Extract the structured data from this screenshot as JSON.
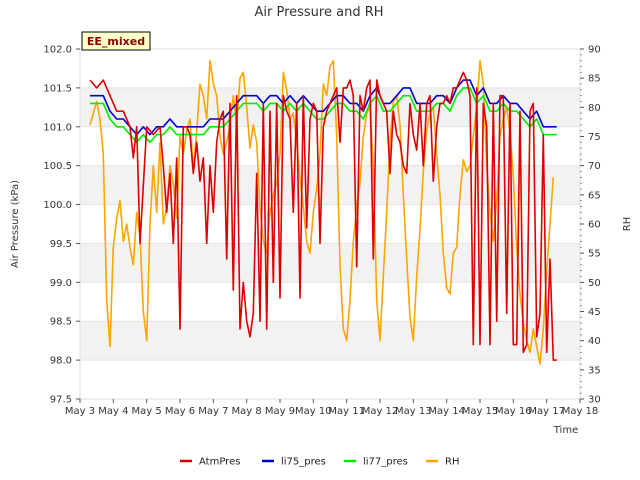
{
  "chart_data": {
    "type": "line",
    "title": "Air Pressure and RH",
    "badge": "EE_mixed",
    "xlabel": "Time",
    "ylabel": "Air Pressure (kPa)",
    "y2label": "RH",
    "xlim": [
      3,
      18
    ],
    "ylim": [
      97.5,
      102.0
    ],
    "y2lim": [
      30,
      90
    ],
    "x_ticks": [
      3,
      4,
      5,
      6,
      7,
      8,
      9,
      10,
      11,
      12,
      13,
      14,
      15,
      16,
      17,
      18
    ],
    "x_tick_labels": [
      "May 3",
      "May 4",
      "May 5",
      "May 6",
      "May 7",
      "May 8",
      "May 9",
      "May 10",
      "May 11",
      "May 12",
      "May 13",
      "May 14",
      "May 15",
      "May 16",
      "May 17",
      "May 18"
    ],
    "y_ticks": [
      97.5,
      98.0,
      98.5,
      99.0,
      99.5,
      100.0,
      100.5,
      101.0,
      101.5,
      102.0
    ],
    "y_tick_labels": [
      "97.5",
      "98.0",
      "98.5",
      "99.0",
      "99.5",
      "100.0",
      "100.5",
      "101.0",
      "101.5",
      "102.0"
    ],
    "y2_ticks": [
      30,
      35,
      40,
      45,
      50,
      55,
      60,
      65,
      70,
      75,
      80,
      85,
      90
    ],
    "y2_tick_labels": [
      "30",
      "35",
      "40",
      "45",
      "50",
      "55",
      "60",
      "65",
      "70",
      "75",
      "80",
      "85",
      "90"
    ],
    "grid": "horizontal bands",
    "legend_position": "bottom",
    "series": [
      {
        "name": "AtmPres",
        "axis": "left",
        "color": "#dd0000",
        "x": [
          3.3,
          3.5,
          3.7,
          3.9,
          4.1,
          4.3,
          4.5,
          4.6,
          4.7,
          4.8,
          5.0,
          5.2,
          5.4,
          5.5,
          5.6,
          5.7,
          5.8,
          5.9,
          6.0,
          6.1,
          6.2,
          6.3,
          6.4,
          6.5,
          6.6,
          6.7,
          6.8,
          6.9,
          7.0,
          7.1,
          7.2,
          7.3,
          7.4,
          7.5,
          7.6,
          7.7,
          7.8,
          7.9,
          8.0,
          8.1,
          8.2,
          8.3,
          8.4,
          8.5,
          8.6,
          8.7,
          8.8,
          8.9,
          9.0,
          9.1,
          9.2,
          9.3,
          9.4,
          9.5,
          9.6,
          9.7,
          9.8,
          9.9,
          10.0,
          10.1,
          10.2,
          10.3,
          10.4,
          10.5,
          10.6,
          10.7,
          10.8,
          10.9,
          11.0,
          11.1,
          11.2,
          11.3,
          11.4,
          11.5,
          11.6,
          11.7,
          11.8,
          11.9,
          12.0,
          12.1,
          12.2,
          12.3,
          12.4,
          12.5,
          12.6,
          12.7,
          12.8,
          12.9,
          13.0,
          13.1,
          13.2,
          13.3,
          13.4,
          13.5,
          13.6,
          13.7,
          13.8,
          13.9,
          14.0,
          14.1,
          14.2,
          14.3,
          14.4,
          14.5,
          14.6,
          14.7,
          14.8,
          14.9,
          15.0,
          15.1,
          15.2,
          15.3,
          15.4,
          15.5,
          15.6,
          15.7,
          15.8,
          15.9,
          16.0,
          16.1,
          16.2,
          16.3,
          16.4,
          16.5,
          16.6,
          16.7,
          16.8,
          16.9,
          17.0,
          17.1,
          17.2,
          17.3
        ],
        "y": [
          101.6,
          101.5,
          101.6,
          101.4,
          101.2,
          101.2,
          101.0,
          100.6,
          101.0,
          99.5,
          101.0,
          100.9,
          101.0,
          100.5,
          99.9,
          100.4,
          99.5,
          100.6,
          98.4,
          101.0,
          101.0,
          100.9,
          100.4,
          100.8,
          100.3,
          100.6,
          99.5,
          100.5,
          99.9,
          100.8,
          101.1,
          101.2,
          99.3,
          101.3,
          98.9,
          101.4,
          98.4,
          99.0,
          98.5,
          98.3,
          98.6,
          100.4,
          98.5,
          101.3,
          98.4,
          101.2,
          99.0,
          101.3,
          98.8,
          101.4,
          101.2,
          101.1,
          99.9,
          101.3,
          98.8,
          101.4,
          99.7,
          101.1,
          101.3,
          101.2,
          99.5,
          101.0,
          101.2,
          101.3,
          101.4,
          101.5,
          100.8,
          101.5,
          101.5,
          101.6,
          101.4,
          99.2,
          101.4,
          101.2,
          101.5,
          101.6,
          99.3,
          101.6,
          101.4,
          101.3,
          101.2,
          100.4,
          101.2,
          100.9,
          100.8,
          100.5,
          100.4,
          101.3,
          100.9,
          100.7,
          101.3,
          100.5,
          101.3,
          101.4,
          100.3,
          101.0,
          101.3,
          101.3,
          101.4,
          101.3,
          101.5,
          101.5,
          101.6,
          101.7,
          101.6,
          101.4,
          98.2,
          101.5,
          98.2,
          101.3,
          101.0,
          98.2,
          101.3,
          98.5,
          101.4,
          101.4,
          98.6,
          101.3,
          98.2,
          98.2,
          101.2,
          98.1,
          98.2,
          101.2,
          101.3,
          98.3,
          98.6,
          100.9,
          98.1,
          99.3,
          98.0,
          98.0
        ]
      },
      {
        "name": "li75_pres",
        "axis": "left",
        "color": "#0000cc",
        "x": [
          3.3,
          3.5,
          3.7,
          3.9,
          4.1,
          4.3,
          4.5,
          4.7,
          4.9,
          5.1,
          5.3,
          5.5,
          5.7,
          5.9,
          6.1,
          6.3,
          6.5,
          6.7,
          6.9,
          7.1,
          7.3,
          7.5,
          7.7,
          7.9,
          8.1,
          8.3,
          8.5,
          8.7,
          8.9,
          9.1,
          9.3,
          9.5,
          9.7,
          9.9,
          10.1,
          10.3,
          10.5,
          10.7,
          10.9,
          11.1,
          11.3,
          11.5,
          11.7,
          11.9,
          12.1,
          12.3,
          12.5,
          12.7,
          12.9,
          13.1,
          13.3,
          13.5,
          13.7,
          13.9,
          14.1,
          14.3,
          14.5,
          14.7,
          14.9,
          15.1,
          15.3,
          15.5,
          15.7,
          15.9,
          16.1,
          16.3,
          16.5,
          16.7,
          16.9,
          17.1,
          17.3
        ],
        "y": [
          101.4,
          101.4,
          101.4,
          101.2,
          101.1,
          101.1,
          101.0,
          100.9,
          101.0,
          100.9,
          101.0,
          101.0,
          101.1,
          101.0,
          101.0,
          101.0,
          101.0,
          101.0,
          101.1,
          101.1,
          101.1,
          101.2,
          101.3,
          101.4,
          101.4,
          101.4,
          101.3,
          101.4,
          101.4,
          101.3,
          101.4,
          101.3,
          101.4,
          101.3,
          101.2,
          101.2,
          101.3,
          101.4,
          101.4,
          101.3,
          101.3,
          101.2,
          101.4,
          101.5,
          101.3,
          101.3,
          101.4,
          101.5,
          101.5,
          101.3,
          101.3,
          101.3,
          101.4,
          101.4,
          101.3,
          101.5,
          101.6,
          101.6,
          101.4,
          101.5,
          101.3,
          101.3,
          101.4,
          101.3,
          101.3,
          101.2,
          101.1,
          101.2,
          101.0,
          101.0,
          101.0
        ]
      },
      {
        "name": "li77_pres",
        "axis": "left",
        "color": "#00ee00",
        "x": [
          3.3,
          3.5,
          3.7,
          3.9,
          4.1,
          4.3,
          4.5,
          4.7,
          4.9,
          5.1,
          5.3,
          5.5,
          5.7,
          5.9,
          6.1,
          6.3,
          6.5,
          6.7,
          6.9,
          7.1,
          7.3,
          7.5,
          7.7,
          7.9,
          8.1,
          8.3,
          8.5,
          8.7,
          8.9,
          9.1,
          9.3,
          9.5,
          9.7,
          9.9,
          10.1,
          10.3,
          10.5,
          10.7,
          10.9,
          11.1,
          11.3,
          11.5,
          11.7,
          11.9,
          12.1,
          12.3,
          12.5,
          12.7,
          12.9,
          13.1,
          13.3,
          13.5,
          13.7,
          13.9,
          14.1,
          14.3,
          14.5,
          14.7,
          14.9,
          15.1,
          15.3,
          15.5,
          15.7,
          15.9,
          16.1,
          16.3,
          16.5,
          16.7,
          16.9,
          17.1,
          17.3
        ],
        "y": [
          101.3,
          101.3,
          101.3,
          101.1,
          101.0,
          101.0,
          100.9,
          100.8,
          100.9,
          100.8,
          100.9,
          100.9,
          101.0,
          100.9,
          100.9,
          100.9,
          100.9,
          100.9,
          101.0,
          101.0,
          101.0,
          101.1,
          101.2,
          101.3,
          101.3,
          101.3,
          101.2,
          101.3,
          101.3,
          101.2,
          101.3,
          101.2,
          101.3,
          101.2,
          101.1,
          101.1,
          101.2,
          101.3,
          101.3,
          101.2,
          101.2,
          101.1,
          101.3,
          101.4,
          101.2,
          101.2,
          101.3,
          101.4,
          101.4,
          101.2,
          101.2,
          101.2,
          101.3,
          101.3,
          101.2,
          101.4,
          101.5,
          101.5,
          101.3,
          101.4,
          101.2,
          101.2,
          101.3,
          101.2,
          101.2,
          101.1,
          101.0,
          101.1,
          100.9,
          100.9,
          100.9
        ]
      },
      {
        "name": "RH",
        "axis": "right",
        "color": "#ffa500",
        "x": [
          3.3,
          3.5,
          3.6,
          3.7,
          3.8,
          3.9,
          4.0,
          4.1,
          4.2,
          4.3,
          4.4,
          4.5,
          4.6,
          4.7,
          4.8,
          4.9,
          5.0,
          5.1,
          5.2,
          5.3,
          5.4,
          5.5,
          5.6,
          5.7,
          5.8,
          5.9,
          6.0,
          6.1,
          6.2,
          6.3,
          6.4,
          6.5,
          6.6,
          6.7,
          6.8,
          6.9,
          7.0,
          7.1,
          7.2,
          7.3,
          7.4,
          7.5,
          7.6,
          7.7,
          7.8,
          7.9,
          8.0,
          8.1,
          8.2,
          8.3,
          8.4,
          8.5,
          8.6,
          8.7,
          8.8,
          8.9,
          9.0,
          9.1,
          9.2,
          9.3,
          9.4,
          9.5,
          9.6,
          9.7,
          9.8,
          9.9,
          10.0,
          10.1,
          10.2,
          10.3,
          10.4,
          10.5,
          10.6,
          10.7,
          10.8,
          10.9,
          11.0,
          11.1,
          11.2,
          11.3,
          11.4,
          11.5,
          11.6,
          11.7,
          11.8,
          11.9,
          12.0,
          12.1,
          12.2,
          12.3,
          12.4,
          12.5,
          12.6,
          12.7,
          12.8,
          12.9,
          13.0,
          13.1,
          13.2,
          13.3,
          13.4,
          13.5,
          13.6,
          13.7,
          13.8,
          13.9,
          14.0,
          14.1,
          14.2,
          14.3,
          14.4,
          14.5,
          14.6,
          14.7,
          14.8,
          14.9,
          15.0,
          15.1,
          15.2,
          15.3,
          15.4,
          15.5,
          15.6,
          15.7,
          15.8,
          15.9,
          16.0,
          16.1,
          16.2,
          16.3,
          16.4,
          16.5,
          16.6,
          16.7,
          16.8,
          16.9,
          17.0,
          17.1,
          17.2
        ],
        "y": [
          77,
          81,
          78,
          72,
          47,
          39,
          56,
          61,
          64,
          57,
          60,
          56,
          53,
          62,
          58,
          45,
          40,
          60,
          70,
          62,
          74,
          60,
          63,
          70,
          67,
          61,
          75,
          72,
          76,
          78,
          69,
          76,
          84,
          82,
          78,
          88,
          84,
          82,
          75,
          72,
          74,
          77,
          82,
          77,
          85,
          86,
          80,
          73,
          77,
          74,
          63,
          57,
          55,
          62,
          65,
          67,
          72,
          86,
          83,
          78,
          79,
          74,
          68,
          63,
          57,
          55,
          62,
          66,
          72,
          84,
          82,
          87,
          88,
          75,
          53,
          42,
          40,
          47,
          57,
          63,
          67,
          75,
          79,
          80,
          70,
          47,
          40,
          51,
          62,
          74,
          81,
          82,
          77,
          65,
          54,
          44,
          40,
          51,
          59,
          69,
          76,
          79,
          80,
          72,
          65,
          55,
          49,
          48,
          55,
          56,
          65,
          71,
          69,
          70,
          75,
          80,
          88,
          84,
          70,
          62,
          57,
          64,
          75,
          78,
          80,
          76,
          68,
          56,
          48,
          43,
          40,
          38,
          42,
          39,
          36,
          42,
          52,
          60,
          68
        ]
      }
    ]
  }
}
